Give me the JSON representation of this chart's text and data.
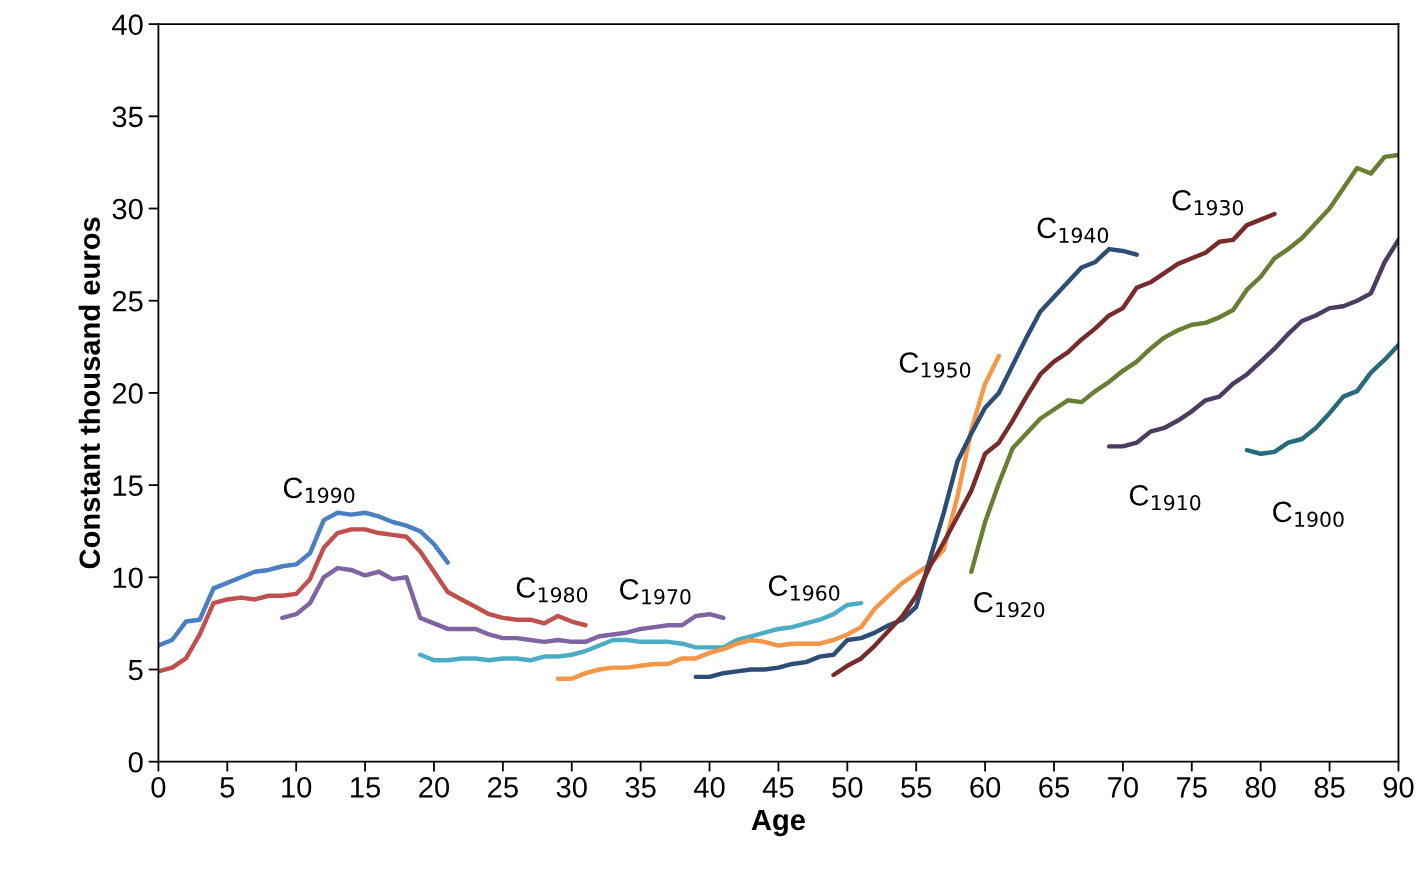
{
  "chart_data": {
    "type": "line",
    "xlabel": "Age",
    "ylabel": "Constant thousand euros",
    "xlim": [
      0,
      90
    ],
    "xticks": [
      0,
      5,
      10,
      15,
      20,
      25,
      30,
      35,
      40,
      45,
      50,
      55,
      60,
      65,
      70,
      75,
      80,
      85,
      90
    ],
    "ylim": [
      0,
      40
    ],
    "yticks": [
      0,
      5,
      10,
      15,
      20,
      25,
      30,
      35,
      40
    ],
    "grid": false,
    "legend": false,
    "marker": "none",
    "line_style": "solid",
    "series": [
      {
        "name": "C$_{1990}$",
        "color": "#4a7fc1",
        "x": [
          0,
          1,
          2,
          3,
          4,
          5,
          6,
          7,
          8,
          9,
          10,
          11,
          12,
          13,
          14,
          15,
          16,
          17,
          18,
          19,
          20,
          21
        ],
        "values": [
          6.3,
          6.6,
          7.6,
          7.7,
          9.4,
          9.7,
          10.0,
          10.3,
          10.4,
          10.6,
          10.7,
          11.3,
          13.1,
          13.5,
          13.4,
          13.5,
          13.3,
          13.0,
          12.8,
          12.5,
          11.8,
          10.8
        ]
      },
      {
        "name": "C$_{1980}$",
        "color": "#c0504d",
        "x": [
          0,
          1,
          2,
          3,
          4,
          5,
          6,
          7,
          8,
          9,
          10,
          11,
          12,
          13,
          14,
          15,
          16,
          17,
          18,
          19,
          20,
          21,
          22,
          23,
          24,
          25,
          26,
          27,
          28,
          29,
          30,
          31
        ],
        "values": [
          4.9,
          5.1,
          5.6,
          6.9,
          8.6,
          8.8,
          8.9,
          8.8,
          9.0,
          9.0,
          9.1,
          9.9,
          11.6,
          12.4,
          12.6,
          12.6,
          12.4,
          12.3,
          12.2,
          11.4,
          10.3,
          9.2,
          8.8,
          8.4,
          8.0,
          7.8,
          7.7,
          7.7,
          7.5,
          7.9,
          7.6,
          7.4
        ]
      },
      {
        "name": "C$_{1970}$",
        "color": "#8064a2",
        "x": [
          9,
          10,
          11,
          12,
          13,
          14,
          15,
          16,
          17,
          18,
          19,
          20,
          21,
          22,
          23,
          24,
          25,
          26,
          27,
          28,
          29,
          30,
          31,
          32,
          33,
          34,
          35,
          36,
          37,
          38,
          39,
          40,
          41
        ],
        "values": [
          7.8,
          8.0,
          8.6,
          10.0,
          10.5,
          10.4,
          10.1,
          10.3,
          9.9,
          10.0,
          7.8,
          7.5,
          7.2,
          7.2,
          7.2,
          6.9,
          6.7,
          6.7,
          6.6,
          6.5,
          6.6,
          6.5,
          6.5,
          6.8,
          6.9,
          7.0,
          7.2,
          7.3,
          7.4,
          7.4,
          7.9,
          8.0,
          7.8
        ]
      },
      {
        "name": "C$_{1960}$",
        "color": "#4bacc6",
        "x": [
          19,
          20,
          21,
          22,
          23,
          24,
          25,
          26,
          27,
          28,
          29,
          30,
          31,
          32,
          33,
          34,
          35,
          36,
          37,
          38,
          39,
          40,
          41,
          42,
          43,
          44,
          45,
          46,
          47,
          48,
          49,
          50,
          51
        ],
        "values": [
          5.8,
          5.5,
          5.5,
          5.6,
          5.6,
          5.5,
          5.6,
          5.6,
          5.5,
          5.7,
          5.7,
          5.8,
          6.0,
          6.3,
          6.6,
          6.6,
          6.5,
          6.5,
          6.5,
          6.4,
          6.2,
          6.2,
          6.2,
          6.6,
          6.8,
          7.0,
          7.2,
          7.3,
          7.5,
          7.7,
          8.0,
          8.5,
          8.6
        ]
      },
      {
        "name": "C$_{1950}$",
        "color": "#f79646",
        "x": [
          29,
          30,
          31,
          32,
          33,
          34,
          35,
          36,
          37,
          38,
          39,
          40,
          41,
          42,
          43,
          44,
          45,
          46,
          47,
          48,
          49,
          50,
          51,
          52,
          53,
          54,
          55,
          56,
          57,
          58,
          59,
          60,
          61
        ],
        "values": [
          4.5,
          4.5,
          4.8,
          5.0,
          5.1,
          5.1,
          5.2,
          5.3,
          5.3,
          5.6,
          5.6,
          5.9,
          6.1,
          6.4,
          6.6,
          6.5,
          6.3,
          6.4,
          6.4,
          6.4,
          6.6,
          6.9,
          7.3,
          8.3,
          9.0,
          9.7,
          10.2,
          10.7,
          11.5,
          14.4,
          18.0,
          20.5,
          22.0
        ]
      },
      {
        "name": "C$_{1940}$",
        "color": "#2c4d75",
        "x": [
          39,
          40,
          41,
          42,
          43,
          44,
          45,
          46,
          47,
          48,
          49,
          50,
          51,
          52,
          53,
          54,
          55,
          56,
          57,
          58,
          59,
          60,
          61,
          62,
          63,
          64,
          65,
          66,
          67,
          68,
          69,
          70,
          71
        ],
        "values": [
          4.6,
          4.6,
          4.8,
          4.9,
          5.0,
          5.0,
          5.1,
          5.3,
          5.4,
          5.7,
          5.8,
          6.6,
          6.7,
          7.0,
          7.4,
          7.7,
          8.4,
          11.0,
          13.5,
          16.3,
          17.8,
          19.2,
          20.0,
          21.5,
          23.0,
          24.4,
          25.2,
          26.0,
          26.8,
          27.1,
          27.8,
          27.7,
          27.5
        ]
      },
      {
        "name": "C$_{1930}$",
        "color": "#772c2a",
        "x": [
          49,
          50,
          51,
          52,
          53,
          54,
          55,
          56,
          57,
          58,
          59,
          60,
          61,
          62,
          63,
          64,
          65,
          66,
          67,
          68,
          69,
          70,
          71,
          72,
          73,
          74,
          75,
          76,
          77,
          78,
          79,
          80,
          81
        ],
        "values": [
          4.7,
          5.2,
          5.6,
          6.3,
          7.1,
          7.9,
          9.0,
          10.6,
          11.9,
          13.3,
          14.7,
          16.7,
          17.3,
          18.5,
          19.8,
          21.0,
          21.7,
          22.2,
          22.9,
          23.5,
          24.2,
          24.6,
          25.7,
          26.0,
          26.5,
          27.0,
          27.3,
          27.6,
          28.2,
          28.3,
          29.1,
          29.4,
          29.7
        ]
      },
      {
        "name": "C$_{1920}$",
        "color": "#677f33",
        "x": [
          59,
          60,
          61,
          62,
          63,
          64,
          65,
          66,
          67,
          68,
          69,
          70,
          71,
          72,
          73,
          74,
          75,
          76,
          77,
          78,
          79,
          80,
          81,
          82,
          83,
          84,
          85,
          86,
          87,
          88,
          89,
          90
        ],
        "values": [
          10.3,
          13.0,
          15.1,
          17.0,
          17.8,
          18.6,
          19.1,
          19.6,
          19.5,
          20.1,
          20.6,
          21.2,
          21.7,
          22.4,
          23.0,
          23.4,
          23.7,
          23.8,
          24.1,
          24.5,
          25.6,
          26.3,
          27.3,
          27.8,
          28.4,
          29.2,
          30.0,
          31.1,
          32.2,
          31.9,
          32.8,
          32.9
        ]
      },
      {
        "name": "C$_{1910}$",
        "color": "#4d3b62",
        "x": [
          69,
          70,
          71,
          72,
          73,
          74,
          75,
          76,
          77,
          78,
          79,
          80,
          81,
          82,
          83,
          84,
          85,
          86,
          87,
          88,
          89,
          90
        ],
        "values": [
          17.1,
          17.1,
          17.3,
          17.9,
          18.1,
          18.5,
          19.0,
          19.6,
          19.8,
          20.5,
          21.0,
          21.7,
          22.4,
          23.2,
          23.9,
          24.2,
          24.6,
          24.7,
          25.0,
          25.4,
          27.1,
          28.3
        ]
      },
      {
        "name": "C$_{1900}$",
        "color": "#276a7c",
        "x": [
          79,
          80,
          81,
          82,
          83,
          84,
          85,
          86,
          87,
          88,
          89,
          90
        ],
        "values": [
          16.9,
          16.7,
          16.8,
          17.3,
          17.5,
          18.1,
          18.9,
          19.8,
          20.1,
          21.1,
          21.8,
          22.6
        ]
      }
    ]
  }
}
